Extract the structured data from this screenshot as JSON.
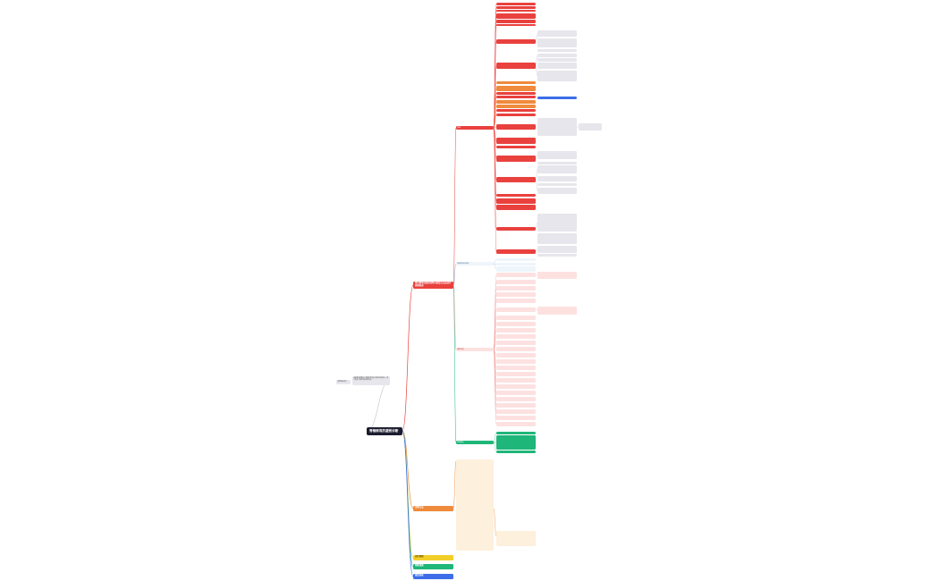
{
  "root": {
    "title": "脊椎侧弯的鉴别诊断"
  },
  "note": {
    "label": "思维导图说明",
    "text": "该思维导图整理了脊椎侧弯鉴别诊断的相关要点，便于快速了解各类侧弯的特点"
  },
  "main_branches": [
    {
      "label": "脊柱侧弯的鉴别诊断与检查方法及治疗原则综述"
    },
    {
      "label": "诊断方法"
    },
    {
      "label": "治疗原则"
    },
    {
      "label": "预防措施"
    },
    {
      "label": "康复训练"
    }
  ],
  "sub_branches": [
    {
      "label": "病因"
    },
    {
      "label": "临床表现与体征"
    },
    {
      "label": "辅助检查"
    },
    {
      "label": "鉴别要点"
    }
  ],
  "colors": {
    "red": "#e9413e",
    "orange": "#f08a3c",
    "yellow": "#f2cf28",
    "green": "#1fb67a",
    "blue": "#3d6ee8",
    "root": "#1c1b2f",
    "grey": "#e6e6ec",
    "pink": "#fde1e1",
    "cream": "#fdf0dc"
  }
}
